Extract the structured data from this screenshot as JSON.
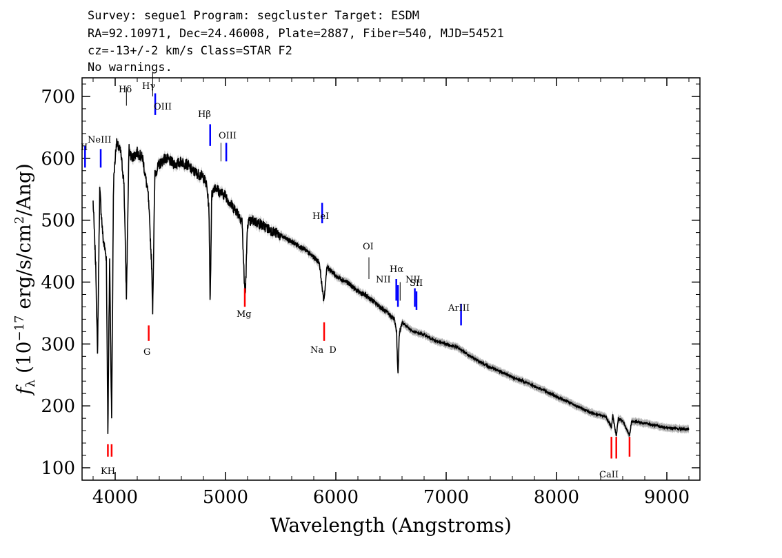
{
  "header": {
    "line1": "Survey: segue1 Program: segcluster Target: ESDM",
    "line2": "RA=92.10971, Dec=24.46008, Plate=2887, Fiber=540, MJD=54521",
    "line3": "cz=-13+/-2 km/s Class=STAR F2",
    "line4": "No warnings."
  },
  "chart_data": {
    "type": "line",
    "title": "",
    "xlabel": "Wavelength (Angstroms)",
    "ylabel": "f_λ (10^-17 erg/s/cm^2/Ang)",
    "xlim": [
      3700,
      9300
    ],
    "ylim": [
      80,
      730
    ],
    "x_ticks": [
      4000,
      5000,
      6000,
      7000,
      8000,
      9000
    ],
    "y_ticks": [
      100,
      200,
      300,
      400,
      500,
      600,
      700
    ],
    "grid": false,
    "colors": {
      "spectrum": "#000000",
      "error_band": "#a8a8a8",
      "emission": "#0000ff",
      "absorption": "#ff0000"
    },
    "series": [
      {
        "x": [
          3800,
          3825,
          3840,
          3860,
          3890,
          3920,
          3934,
          3950,
          3968,
          3985,
          4010,
          4050,
          4080,
          4102,
          4125,
          4150,
          4200,
          4250,
          4300,
          4330,
          4340,
          4360,
          4400,
          4450,
          4500,
          4550,
          4600,
          4650,
          4700,
          4750,
          4800,
          4830,
          4850,
          4861,
          4875,
          4900,
          4950,
          5000,
          5050,
          5100,
          5150,
          5170,
          5180,
          5200,
          5250,
          5300,
          5400,
          5500,
          5600,
          5700,
          5800,
          5850,
          5890,
          5900,
          5920,
          5950,
          6000,
          6100,
          6200,
          6300,
          6400,
          6500,
          6530,
          6550,
          6563,
          6575,
          6600,
          6700,
          6800,
          6900,
          7000,
          7100,
          7200,
          7300,
          7400,
          7500,
          7600,
          7700,
          7800,
          7900,
          8000,
          8100,
          8200,
          8300,
          8400,
          8450,
          8498,
          8510,
          8542,
          8560,
          8600,
          8662,
          8680,
          8700,
          8800,
          8900,
          9000,
          9100,
          9200
        ],
        "y": [
          530,
          420,
          280,
          550,
          470,
          440,
          160,
          440,
          175,
          560,
          625,
          610,
          560,
          375,
          615,
          600,
          610,
          600,
          540,
          430,
          355,
          575,
          590,
          600,
          595,
          590,
          595,
          590,
          580,
          575,
          570,
          555,
          520,
          365,
          540,
          555,
          545,
          540,
          525,
          515,
          500,
          400,
          380,
          495,
          500,
          495,
          485,
          475,
          465,
          455,
          440,
          432,
          370,
          385,
          425,
          420,
          410,
          400,
          385,
          375,
          360,
          345,
          340,
          320,
          250,
          315,
          335,
          320,
          315,
          305,
          300,
          295,
          282,
          272,
          262,
          255,
          246,
          240,
          232,
          224,
          215,
          207,
          198,
          190,
          185,
          182,
          165,
          185,
          150,
          180,
          176,
          152,
          174,
          175,
          172,
          168,
          165,
          163,
          162
        ]
      }
    ],
    "emission_lines": [
      {
        "label": "OII",
        "wavelength": 3727,
        "labeled_text": "II"
      },
      {
        "label": "NeIII",
        "wavelength": 3869
      },
      {
        "label": "Hδ",
        "wavelength": 4102
      },
      {
        "label": "Hγ",
        "wavelength": 4340
      },
      {
        "label": "OIII",
        "wavelength": 4363
      },
      {
        "label": "Hβ",
        "wavelength": 4861
      },
      {
        "label": "OIII",
        "wavelength": 4959
      },
      {
        "label": "OIII",
        "wavelength": 5007
      },
      {
        "label": "HeI",
        "wavelength": 5876
      },
      {
        "label": "OI",
        "wavelength": 6300
      },
      {
        "label": "NII",
        "wavelength": 6548
      },
      {
        "label": "Hα",
        "wavelength": 6563
      },
      {
        "label": "NII",
        "wavelength": 6583
      },
      {
        "label": "SII",
        "wavelength": 6716
      },
      {
        "label": "SII",
        "wavelength": 6731
      },
      {
        "label": "ArIII",
        "wavelength": 7135
      }
    ],
    "absorption_lines": [
      {
        "label": "K",
        "wavelength": 3934
      },
      {
        "label": "H",
        "wavelength": 3968
      },
      {
        "label": "G",
        "wavelength": 4304
      },
      {
        "label": "Mg",
        "wavelength": 5175
      },
      {
        "label": "Na D",
        "wavelength": 5894
      },
      {
        "label": "CaII",
        "wavelength": 8498
      },
      {
        "label": "CaII",
        "wavelength": 8542
      },
      {
        "label": "CaII",
        "wavelength": 8662
      }
    ],
    "line_label_texts": {
      "oii": "II",
      "neiii": "NeIII",
      "hdelta": "Hδ",
      "hgamma": "Hγ",
      "oiii_a": "OIII",
      "hbeta": "Hβ",
      "oiii_b": "OIII",
      "hei": "HeI",
      "oi": "OI",
      "nii_a": "NII",
      "halpha": "Hα",
      "nii_b": "NII",
      "sii": "SII",
      "ariii": "ArIII",
      "kh": "KH",
      "g": "G",
      "mg": "Mg",
      "nad": "Na  D",
      "caii": "CaII"
    }
  }
}
